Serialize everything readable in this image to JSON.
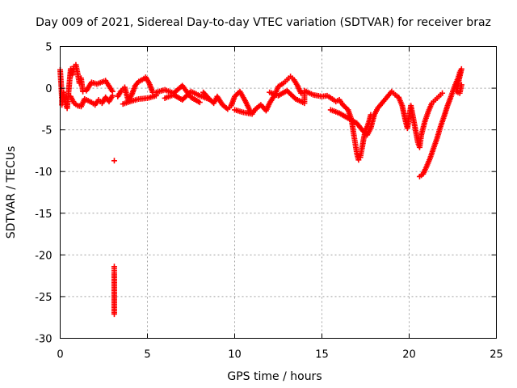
{
  "chart_data": {
    "type": "scatter",
    "title": "Day 009 of 2021, Sidereal Day-to-day VTEC variation (SDTVAR) for receiver braz",
    "xlabel": "GPS time / hours",
    "ylabel": "SDTVAR / TECUs",
    "xlim": [
      0,
      25
    ],
    "ylim": [
      -30,
      5
    ],
    "xticks": [
      0,
      5,
      10,
      15,
      20,
      25
    ],
    "yticks": [
      5,
      0,
      -5,
      -10,
      -15,
      -20,
      -25,
      -30
    ],
    "grid": true,
    "marker": "+",
    "color": "#ff0000",
    "series": [
      {
        "name": "SDTVAR braz",
        "points": [
          [
            0.0,
            2.2
          ],
          [
            0.05,
            0.6
          ],
          [
            0.1,
            -1.3
          ],
          [
            0.1,
            -2.0
          ],
          [
            0.2,
            -0.5
          ],
          [
            0.3,
            -1.8
          ],
          [
            0.4,
            -2.4
          ],
          [
            0.6,
            2.3
          ],
          [
            0.7,
            1.6
          ],
          [
            0.8,
            2.6
          ],
          [
            0.9,
            2.8
          ],
          [
            1.0,
            1.8
          ],
          [
            1.1,
            0.6
          ],
          [
            1.2,
            1.2
          ],
          [
            1.3,
            -0.4
          ],
          [
            0.6,
            -1.0
          ],
          [
            0.8,
            -1.8
          ],
          [
            1.0,
            -2.1
          ],
          [
            1.2,
            -2.2
          ],
          [
            1.4,
            -1.3
          ],
          [
            1.6,
            -1.5
          ],
          [
            1.8,
            -1.7
          ],
          [
            2.0,
            -2.0
          ],
          [
            2.2,
            -1.4
          ],
          [
            2.4,
            -1.8
          ],
          [
            2.6,
            -1.1
          ],
          [
            2.8,
            -1.6
          ],
          [
            3.0,
            -0.9
          ],
          [
            1.5,
            -0.3
          ],
          [
            1.8,
            0.7
          ],
          [
            2.1,
            0.5
          ],
          [
            2.6,
            0.9
          ],
          [
            3.0,
            -0.4
          ],
          [
            3.1,
            -8.7
          ],
          [
            3.1,
            -21.4
          ],
          [
            3.1,
            -22.3
          ],
          [
            3.1,
            -27.1
          ],
          [
            3.3,
            -1.0
          ],
          [
            3.5,
            -0.3
          ],
          [
            3.7,
            0.1
          ],
          [
            3.9,
            -1.5
          ],
          [
            4.1,
            -0.8
          ],
          [
            4.3,
            0.3
          ],
          [
            4.5,
            0.8
          ],
          [
            4.7,
            1.0
          ],
          [
            4.9,
            1.3
          ],
          [
            5.1,
            0.6
          ],
          [
            5.3,
            -0.5
          ],
          [
            3.6,
            -1.9
          ],
          [
            4.0,
            -1.6
          ],
          [
            4.5,
            -1.3
          ],
          [
            5.0,
            -1.2
          ],
          [
            5.5,
            -0.9
          ],
          [
            5.5,
            -0.5
          ],
          [
            6.0,
            -0.2
          ],
          [
            6.5,
            -0.6
          ],
          [
            7.0,
            0.3
          ],
          [
            7.5,
            -1.1
          ],
          [
            8.0,
            -1.7
          ],
          [
            6.0,
            -1.2
          ],
          [
            6.5,
            -0.8
          ],
          [
            7.0,
            -1.4
          ],
          [
            7.5,
            -0.4
          ],
          [
            8.0,
            -0.9
          ],
          [
            8.5,
            -1.3
          ],
          [
            8.2,
            -0.5
          ],
          [
            8.5,
            -1.2
          ],
          [
            8.8,
            -1.8
          ],
          [
            9.0,
            -1.0
          ],
          [
            9.3,
            -2.0
          ],
          [
            9.6,
            -2.5
          ],
          [
            9.8,
            -2.1
          ],
          [
            10.0,
            -1.0
          ],
          [
            10.3,
            -0.4
          ],
          [
            10.6,
            -1.5
          ],
          [
            10.9,
            -2.8
          ],
          [
            10.0,
            -2.6
          ],
          [
            10.5,
            -2.9
          ],
          [
            11.0,
            -3.1
          ],
          [
            11.2,
            -2.5
          ],
          [
            11.5,
            -2.0
          ],
          [
            11.8,
            -2.7
          ],
          [
            12.0,
            -1.8
          ],
          [
            12.3,
            -0.8
          ],
          [
            12.5,
            0.2
          ],
          [
            12.8,
            0.6
          ],
          [
            13.0,
            1.0
          ],
          [
            13.2,
            1.4
          ],
          [
            13.4,
            1.0
          ],
          [
            13.6,
            0.3
          ],
          [
            13.8,
            -0.6
          ],
          [
            12.0,
            -0.5
          ],
          [
            12.5,
            -0.9
          ],
          [
            13.0,
            -0.3
          ],
          [
            13.5,
            -1.3
          ],
          [
            14.0,
            -1.8
          ],
          [
            14.0,
            -0.3
          ],
          [
            14.5,
            -0.8
          ],
          [
            15.0,
            -1.0
          ],
          [
            15.3,
            -0.9
          ],
          [
            15.6,
            -1.3
          ],
          [
            15.8,
            -1.6
          ],
          [
            16.0,
            -1.4
          ],
          [
            16.2,
            -2.0
          ],
          [
            16.5,
            -2.6
          ],
          [
            16.7,
            -3.8
          ],
          [
            16.8,
            -5.2
          ],
          [
            16.9,
            -6.5
          ],
          [
            17.0,
            -7.8
          ],
          [
            17.1,
            -8.6
          ],
          [
            17.2,
            -8.3
          ],
          [
            17.3,
            -7.2
          ],
          [
            17.4,
            -6.0
          ],
          [
            17.5,
            -5.0
          ],
          [
            17.6,
            -4.6
          ],
          [
            17.7,
            -4.0
          ],
          [
            17.8,
            -3.2
          ],
          [
            15.5,
            -2.6
          ],
          [
            16.0,
            -3.0
          ],
          [
            16.5,
            -3.6
          ],
          [
            17.0,
            -4.2
          ],
          [
            17.3,
            -5.0
          ],
          [
            17.6,
            -5.6
          ],
          [
            17.8,
            -4.8
          ],
          [
            18.0,
            -3.2
          ],
          [
            18.2,
            -2.4
          ],
          [
            18.4,
            -1.9
          ],
          [
            18.6,
            -1.4
          ],
          [
            18.8,
            -0.9
          ],
          [
            19.0,
            -0.4
          ],
          [
            19.2,
            -0.8
          ],
          [
            19.4,
            -1.1
          ],
          [
            19.6,
            -2.1
          ],
          [
            19.8,
            -4.0
          ],
          [
            19.9,
            -4.8
          ],
          [
            20.1,
            -2.1
          ],
          [
            20.3,
            -4.3
          ],
          [
            20.5,
            -6.5
          ],
          [
            20.6,
            -7.1
          ],
          [
            20.7,
            -5.6
          ],
          [
            20.9,
            -4.0
          ],
          [
            21.1,
            -2.8
          ],
          [
            21.3,
            -1.8
          ],
          [
            21.5,
            -1.4
          ],
          [
            21.7,
            -1.0
          ],
          [
            21.9,
            -0.6
          ],
          [
            20.6,
            -10.6
          ],
          [
            20.8,
            -10.3
          ],
          [
            21.0,
            -9.4
          ],
          [
            21.2,
            -8.4
          ],
          [
            21.4,
            -7.2
          ],
          [
            21.6,
            -6.0
          ],
          [
            21.8,
            -4.6
          ],
          [
            22.0,
            -3.4
          ],
          [
            22.2,
            -2.1
          ],
          [
            22.4,
            -1.0
          ],
          [
            22.6,
            0.2
          ],
          [
            22.8,
            1.2
          ],
          [
            22.9,
            1.9
          ],
          [
            23.0,
            2.3
          ],
          [
            22.7,
            -0.4
          ],
          [
            22.9,
            -0.6
          ],
          [
            23.0,
            0.4
          ]
        ]
      }
    ]
  }
}
